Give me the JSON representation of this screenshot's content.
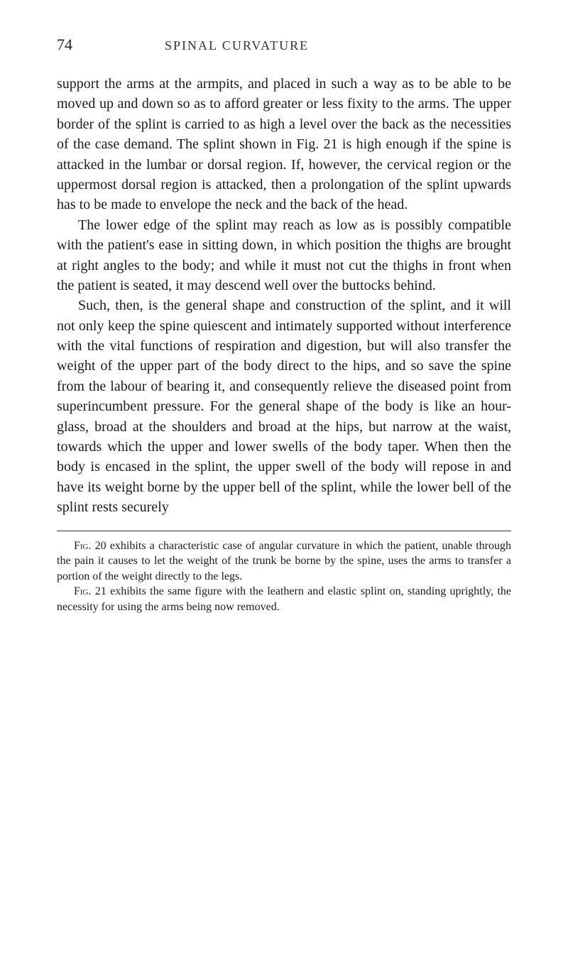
{
  "header": {
    "page_number": "74",
    "chapter_title": "SPINAL CURVATURE"
  },
  "body": {
    "p1": "support the arms at the armpits, and placed in such a way as to be able to be moved up and down so as to afford greater or less fixity to the arms. The upper border of the splint is carried to as high a level over the back as the necessities of the case demand. The splint shown in Fig. 21 is high enough if the spine is attacked in the lumbar or dorsal region. If, however, the cervical region or the uppermost dorsal region is attacked, then a prolongation of the splint upwards has to be made to envelope the neck and the back of the head.",
    "p2": "The lower edge of the splint may reach as low as is possibly compatible with the patient's ease in sitting down, in which position the thighs are brought at right angles to the body; and while it must not cut the thighs in front when the patient is seated, it may descend well over the buttocks behind.",
    "p3": "Such, then, is the general shape and construction of the splint, and it will not only keep the spine quiescent and intimately supported without interference with the vital functions of respiration and digestion, but will also transfer the weight of the upper part of the body direct to the hips, and so save the spine from the labour of bearing it, and consequently relieve the diseased point from superincumbent pressure. For the general shape of the body is like an hour-glass, broad at the shoulders and broad at the hips, but narrow at the waist, towards which the upper and lower swells of the body taper. When then the body is encased in the splint, the upper swell of the body will repose in and have its weight borne by the upper bell of the splint, while the lower bell of the splint rests securely"
  },
  "footnotes": {
    "fn1_label": "Fig.",
    "fn1_num": " 20 ",
    "fn1_text": "exhibits a characteristic case of angular curvature in which the patient, unable through the pain it causes to let the weight of the trunk be borne by the spine, uses the arms to transfer a portion of the weight directly to the legs.",
    "fn2_label": "Fig.",
    "fn2_num": " 21 ",
    "fn2_text": "exhibits the same figure with the leathern and elastic splint on, standing uprightly, the necessity for using the arms being now removed."
  },
  "styling": {
    "page_bg": "#ffffff",
    "text_color": "#1a1a1a",
    "body_font_size": 20,
    "footnote_font_size": 16,
    "page_number_font_size": 22,
    "chapter_title_font_size": 18,
    "line_height": 1.42
  }
}
